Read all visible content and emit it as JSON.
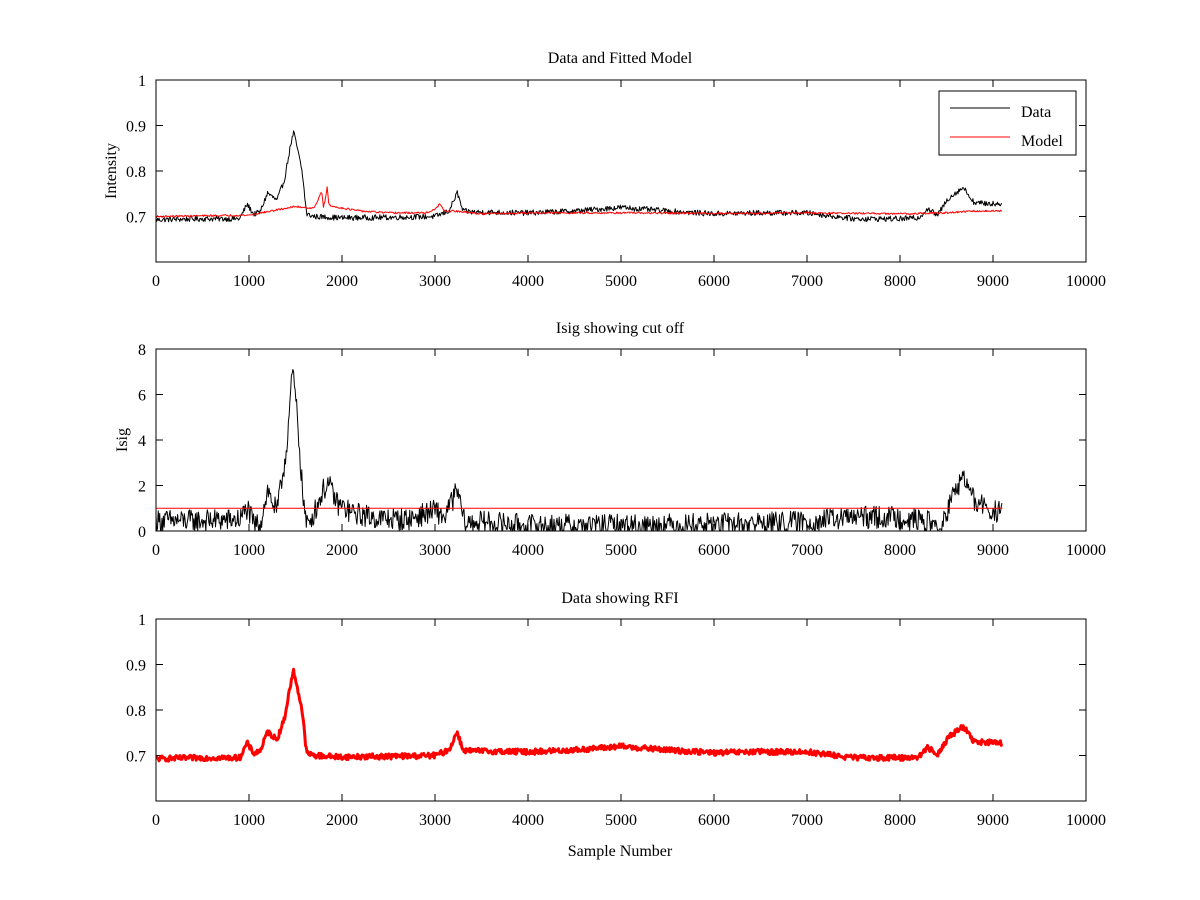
{
  "chart_data": [
    {
      "type": "line",
      "title": "Data and Fitted Model",
      "xlabel": "",
      "ylabel": "Intensity",
      "xlim": [
        0,
        10000
      ],
      "ylim": [
        0.6,
        1.0
      ],
      "xticks": [
        0,
        1000,
        2000,
        3000,
        4000,
        5000,
        6000,
        7000,
        8000,
        9000,
        10000
      ],
      "yticks": [
        0.7,
        0.8,
        0.9,
        1
      ],
      "legend": {
        "position": "top-right",
        "entries": [
          "Data",
          "Model"
        ]
      },
      "series": [
        {
          "name": "Data",
          "color": "#000000",
          "noise": 0.006,
          "x": [
            0,
            500,
            900,
            980,
            1050,
            1120,
            1200,
            1300,
            1380,
            1450,
            1480,
            1520,
            1570,
            1620,
            1700,
            2000,
            2500,
            3000,
            3150,
            3240,
            3300,
            3400,
            4000,
            4500,
            5000,
            5500,
            6000,
            6500,
            7000,
            7500,
            8000,
            8200,
            8300,
            8400,
            8520,
            8680,
            8800,
            9000,
            9100
          ],
          "y": [
            0.693,
            0.695,
            0.695,
            0.727,
            0.705,
            0.71,
            0.752,
            0.735,
            0.78,
            0.86,
            0.885,
            0.85,
            0.8,
            0.705,
            0.7,
            0.697,
            0.698,
            0.7,
            0.712,
            0.752,
            0.712,
            0.71,
            0.708,
            0.712,
            0.72,
            0.712,
            0.706,
            0.708,
            0.708,
            0.695,
            0.695,
            0.697,
            0.718,
            0.702,
            0.74,
            0.764,
            0.73,
            0.728,
            0.728
          ]
        },
        {
          "name": "Model",
          "color": "#ff0000",
          "noise": 0.002,
          "x": [
            0,
            1000,
            1500,
            1700,
            1780,
            1800,
            1820,
            1840,
            1860,
            1900,
            2200,
            2500,
            2900,
            3000,
            3050,
            3100,
            3200,
            3500,
            4000,
            5000,
            6000,
            7000,
            8000,
            8500,
            8800,
            9100
          ],
          "y": [
            0.7,
            0.703,
            0.722,
            0.718,
            0.755,
            0.722,
            0.735,
            0.765,
            0.725,
            0.722,
            0.712,
            0.708,
            0.708,
            0.715,
            0.728,
            0.712,
            0.712,
            0.706,
            0.708,
            0.708,
            0.707,
            0.708,
            0.706,
            0.708,
            0.712,
            0.712
          ]
        }
      ]
    },
    {
      "type": "line",
      "title": "Isig showing cut off",
      "xlabel": "",
      "ylabel": "Isig",
      "xlim": [
        0,
        10000
      ],
      "ylim": [
        0,
        8
      ],
      "xticks": [
        0,
        1000,
        2000,
        3000,
        4000,
        5000,
        6000,
        7000,
        8000,
        9000,
        10000
      ],
      "yticks": [
        0,
        2,
        4,
        6,
        8
      ],
      "cutoff": 1,
      "series": [
        {
          "name": "Isig",
          "color": "#000000",
          "noise": 0.5,
          "x": [
            0,
            500,
            900,
            980,
            1050,
            1120,
            1200,
            1300,
            1400,
            1470,
            1520,
            1580,
            1620,
            1700,
            1800,
            1850,
            1950,
            2100,
            2400,
            2700,
            3000,
            3100,
            3240,
            3320,
            3450,
            4000,
            5000,
            6000,
            7000,
            7500,
            8000,
            8300,
            8450,
            8500,
            8600,
            8680,
            8800,
            9000,
            9100
          ],
          "y": [
            0.45,
            0.45,
            0.5,
            1.0,
            0.3,
            0.3,
            1.8,
            0.8,
            3.5,
            7.1,
            5.0,
            1.5,
            0.2,
            0.8,
            1.8,
            2.1,
            1.2,
            0.8,
            0.55,
            0.5,
            0.9,
            0.6,
            1.8,
            0.3,
            0.4,
            0.25,
            0.25,
            0.3,
            0.4,
            0.6,
            0.6,
            0.4,
            0.05,
            0.8,
            1.8,
            2.4,
            1.3,
            0.85,
            0.8
          ]
        }
      ]
    },
    {
      "type": "line",
      "title": "Data showing RFI",
      "xlabel": "Sample Number",
      "ylabel": "",
      "xlim": [
        0,
        10000
      ],
      "ylim": [
        0.6,
        1.0
      ],
      "xticks": [
        0,
        1000,
        2000,
        3000,
        4000,
        5000,
        6000,
        7000,
        8000,
        9000,
        10000
      ],
      "yticks": [
        0.7,
        0.8,
        0.9,
        1
      ],
      "series": [
        {
          "name": "Data",
          "color": "#ff0000",
          "noise": 0.006,
          "x": [
            0,
            500,
            900,
            980,
            1050,
            1120,
            1200,
            1300,
            1380,
            1450,
            1480,
            1520,
            1570,
            1620,
            1700,
            2000,
            2500,
            3000,
            3150,
            3240,
            3300,
            3400,
            4000,
            4500,
            5000,
            5500,
            6000,
            6500,
            7000,
            7500,
            8000,
            8200,
            8300,
            8400,
            8520,
            8680,
            8800,
            9000,
            9100
          ],
          "y": [
            0.693,
            0.695,
            0.695,
            0.727,
            0.705,
            0.71,
            0.752,
            0.735,
            0.78,
            0.86,
            0.885,
            0.85,
            0.8,
            0.705,
            0.7,
            0.697,
            0.698,
            0.7,
            0.712,
            0.752,
            0.712,
            0.71,
            0.708,
            0.712,
            0.72,
            0.712,
            0.706,
            0.708,
            0.708,
            0.695,
            0.695,
            0.697,
            0.718,
            0.702,
            0.74,
            0.764,
            0.73,
            0.728,
            0.728
          ]
        }
      ]
    }
  ]
}
